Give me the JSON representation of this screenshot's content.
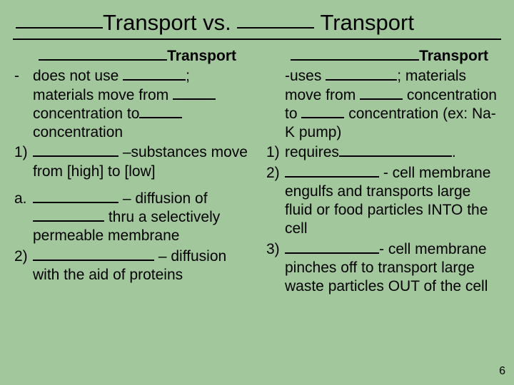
{
  "background_color": "#a3c79d",
  "title": {
    "word1": "Transport",
    "vs": "vs.",
    "word2": "Transport"
  },
  "left": {
    "header": "Transport",
    "items": [
      {
        "bullet": "-",
        "text_parts": [
          "does not use ",
          "BLK:b80",
          "; materials move from ",
          "BLK:b60",
          "concentration to",
          "BLK:b60",
          "concentration"
        ]
      },
      {
        "bullet": "1)",
        "text_parts": [
          "",
          "BLK:b120",
          " –substances move from [high] to [low]"
        ]
      },
      {
        "bullet": "a.",
        "text_parts": [
          "",
          "BLK:b120",
          " – diffusion of ",
          "BLK:b100",
          " thru a selectively permeable membrane"
        ]
      },
      {
        "bullet": "2)",
        "text_parts": [
          "",
          "BLK:b170",
          " – diffusion with the aid of proteins"
        ]
      }
    ]
  },
  "right": {
    "header": "Transport",
    "items": [
      {
        "bullet": "",
        "text_parts": [
          "-uses ",
          "BLK:b100",
          "; materials move from ",
          "BLK:b60",
          " concentration to ",
          "BLK:b60",
          " concentration (ex: Na-K pump)"
        ]
      },
      {
        "bullet": "1)",
        "text_parts": [
          "requires",
          "BLK:b150",
          "."
        ]
      },
      {
        "bullet": "2)",
        "text_parts": [
          "",
          "BLK:b130",
          " -  cell membrane engulfs and transports large fluid or food particles INTO the cell"
        ]
      },
      {
        "bullet": "3)",
        "text_parts": [
          "",
          "BLK:b130",
          "-  cell membrane pinches off to transport large waste particles OUT of the cell"
        ]
      }
    ]
  },
  "page_number": "6"
}
